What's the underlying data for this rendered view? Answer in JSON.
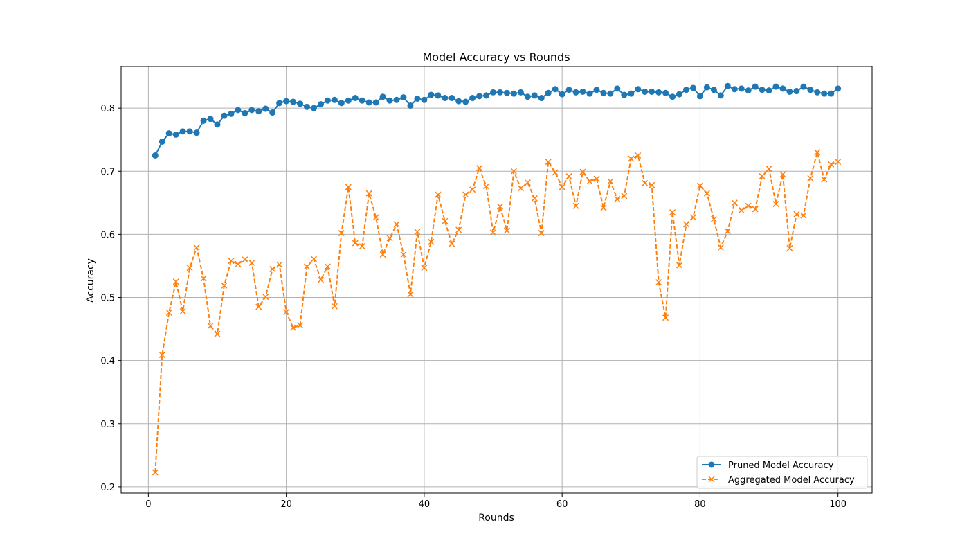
{
  "chart_data": {
    "type": "line",
    "title": "Model Accuracy vs Rounds",
    "xlabel": "Rounds",
    "ylabel": "Accuracy",
    "xlim": [
      -3.95,
      104.95
    ],
    "ylim": [
      0.19,
      0.866
    ],
    "xticks": [
      0,
      20,
      40,
      60,
      80,
      100
    ],
    "yticks": [
      0.2,
      0.3,
      0.4,
      0.5,
      0.6,
      0.7,
      0.8
    ],
    "grid": true,
    "legend_position": "lower-right",
    "x": [
      1,
      2,
      3,
      4,
      5,
      6,
      7,
      8,
      9,
      10,
      11,
      12,
      13,
      14,
      15,
      16,
      17,
      18,
      19,
      20,
      21,
      22,
      23,
      24,
      25,
      26,
      27,
      28,
      29,
      30,
      31,
      32,
      33,
      34,
      35,
      36,
      37,
      38,
      39,
      40,
      41,
      42,
      43,
      44,
      45,
      46,
      47,
      48,
      49,
      50,
      51,
      52,
      53,
      54,
      55,
      56,
      57,
      58,
      59,
      60,
      61,
      62,
      63,
      64,
      65,
      66,
      67,
      68,
      69,
      70,
      71,
      72,
      73,
      74,
      75,
      76,
      77,
      78,
      79,
      80,
      81,
      82,
      83,
      84,
      85,
      86,
      87,
      88,
      89,
      90,
      91,
      92,
      93,
      94,
      95,
      96,
      97,
      98,
      99,
      100
    ],
    "series": [
      {
        "name": "Pruned Model Accuracy",
        "color": "#1f77b4",
        "style": "solid",
        "marker": "circle",
        "values": [
          0.725,
          0.747,
          0.76,
          0.758,
          0.763,
          0.763,
          0.761,
          0.78,
          0.783,
          0.774,
          0.788,
          0.791,
          0.797,
          0.792,
          0.797,
          0.795,
          0.799,
          0.793,
          0.808,
          0.811,
          0.81,
          0.807,
          0.802,
          0.8,
          0.806,
          0.812,
          0.813,
          0.808,
          0.812,
          0.816,
          0.812,
          0.809,
          0.809,
          0.818,
          0.812,
          0.813,
          0.817,
          0.804,
          0.815,
          0.813,
          0.821,
          0.82,
          0.816,
          0.816,
          0.811,
          0.81,
          0.816,
          0.819,
          0.82,
          0.825,
          0.825,
          0.824,
          0.823,
          0.825,
          0.818,
          0.82,
          0.816,
          0.824,
          0.83,
          0.822,
          0.829,
          0.825,
          0.826,
          0.823,
          0.829,
          0.824,
          0.823,
          0.831,
          0.821,
          0.823,
          0.83,
          0.826,
          0.826,
          0.825,
          0.824,
          0.818,
          0.822,
          0.829,
          0.832,
          0.819,
          0.833,
          0.829,
          0.82,
          0.835,
          0.83,
          0.831,
          0.828,
          0.834,
          0.829,
          0.828,
          0.834,
          0.831,
          0.826,
          0.827,
          0.834,
          0.829,
          0.825,
          0.823,
          0.823,
          0.831
        ]
      },
      {
        "name": "Aggregated Model Accuracy",
        "color": "#ff7f0e",
        "style": "dashed",
        "marker": "x",
        "values": [
          0.223,
          0.409,
          0.476,
          0.525,
          0.478,
          0.547,
          0.579,
          0.53,
          0.455,
          0.442,
          0.519,
          0.558,
          0.553,
          0.56,
          0.555,
          0.485,
          0.501,
          0.545,
          0.552,
          0.477,
          0.452,
          0.456,
          0.549,
          0.561,
          0.528,
          0.549,
          0.486,
          0.602,
          0.675,
          0.586,
          0.581,
          0.665,
          0.627,
          0.568,
          0.594,
          0.616,
          0.568,
          0.505,
          0.604,
          0.547,
          0.588,
          0.663,
          0.621,
          0.585,
          0.607,
          0.663,
          0.671,
          0.705,
          0.676,
          0.603,
          0.644,
          0.606,
          0.7,
          0.673,
          0.682,
          0.657,
          0.602,
          0.715,
          0.698,
          0.675,
          0.692,
          0.645,
          0.699,
          0.684,
          0.688,
          0.642,
          0.684,
          0.656,
          0.661,
          0.72,
          0.725,
          0.681,
          0.678,
          0.524,
          0.468,
          0.635,
          0.551,
          0.616,
          0.627,
          0.677,
          0.665,
          0.624,
          0.579,
          0.605,
          0.65,
          0.638,
          0.645,
          0.64,
          0.692,
          0.704,
          0.648,
          0.695,
          0.578,
          0.632,
          0.63,
          0.689,
          0.73,
          0.687,
          0.711,
          0.715
        ]
      }
    ]
  }
}
